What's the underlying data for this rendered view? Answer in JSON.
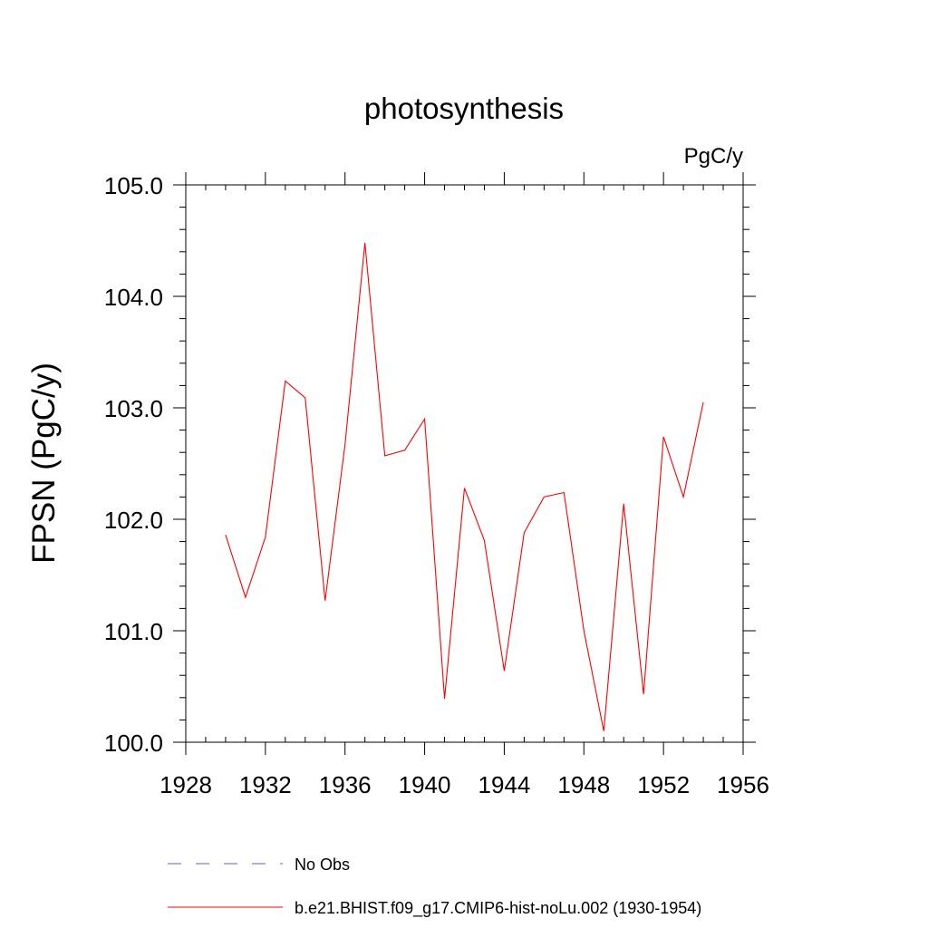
{
  "chart_data": {
    "type": "line",
    "title": "photosynthesis",
    "units": "PgC/y",
    "ylabel": "FPSN  (PgC/y)",
    "xlim": [
      1928,
      1956
    ],
    "ylim": [
      100.0,
      105.0
    ],
    "x_ticks": [
      1928,
      1932,
      1936,
      1940,
      1944,
      1948,
      1952,
      1956
    ],
    "x_tick_labels": [
      "1928",
      "1932",
      "1936",
      "1940",
      "1944",
      "1948",
      "1952",
      "1956"
    ],
    "y_ticks": [
      100.0,
      101.0,
      102.0,
      103.0,
      104.0,
      105.0
    ],
    "y_tick_labels": [
      "100.0",
      "101.0",
      "102.0",
      "103.0",
      "104.0",
      "105.0"
    ],
    "x_minor_step": 1,
    "y_minor_step": 0.2,
    "grid": false,
    "legend_position": "bottom",
    "series": [
      {
        "name": "b.e21.BHIST.f09_g17.CMIP6-hist-noLu.002 (1930-1954)",
        "color": "#ff0000",
        "line_style": "solid",
        "x": [
          1930,
          1931,
          1932,
          1933,
          1934,
          1935,
          1936,
          1937,
          1938,
          1939,
          1940,
          1941,
          1942,
          1943,
          1944,
          1945,
          1946,
          1947,
          1948,
          1949,
          1950,
          1951,
          1952,
          1953,
          1954
        ],
        "y": [
          101.86,
          101.3,
          101.84,
          103.24,
          103.09,
          101.27,
          102.67,
          104.48,
          102.57,
          102.62,
          102.9,
          100.39,
          102.28,
          101.81,
          100.64,
          101.88,
          102.2,
          102.24,
          101.0,
          100.1,
          102.14,
          100.43,
          102.74,
          102.2,
          103.05
        ]
      }
    ],
    "legend": [
      {
        "label": "No Obs",
        "color": "#6a5acd",
        "line_style": "dashed"
      },
      {
        "label": "b.e21.BHIST.f09_g17.CMIP6-hist-noLu.002 (1930-1954)",
        "color": "#ff0000",
        "line_style": "solid"
      }
    ]
  }
}
